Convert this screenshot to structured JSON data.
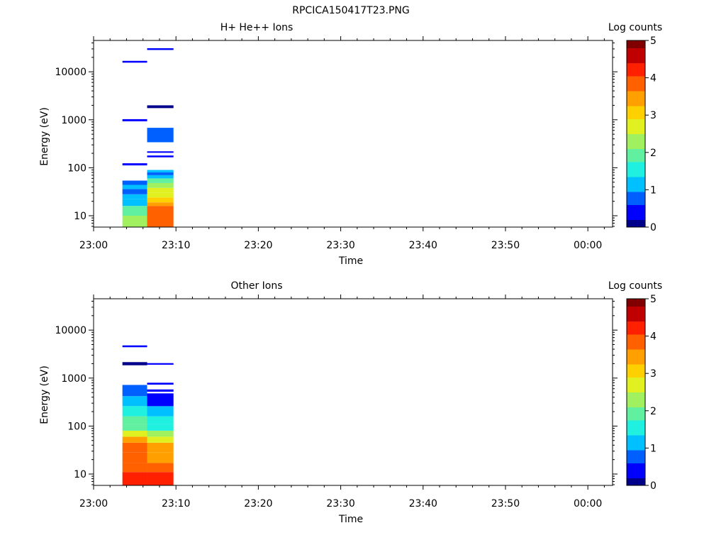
{
  "figure_title": "RPCICA150417T23.PNG",
  "colorbar_scale": [
    "#00008b",
    "#0000ff",
    "#0060ff",
    "#00c0ff",
    "#20f0e0",
    "#60f0a0",
    "#a0f060",
    "#e0f020",
    "#ffd000",
    "#ffa000",
    "#ff6000",
    "#ff2000",
    "#c00000",
    "#800000"
  ],
  "chart_data": [
    {
      "type": "heatmap",
      "title": "H+ He++ Ions",
      "xlabel": "Time",
      "ylabel": "Energy (eV)",
      "y_scale": "log",
      "xlim": [
        "23:00",
        "00:03"
      ],
      "ylim": [
        5.8,
        45000
      ],
      "x_ticks": [
        "23:00",
        "23:10",
        "23:20",
        "23:30",
        "23:40",
        "23:50",
        "00:00"
      ],
      "y_ticks": [
        "10",
        "100",
        "1000",
        "10000"
      ],
      "colorbar": {
        "label": "Log counts",
        "range": [
          0,
          5
        ],
        "ticks": [
          "0",
          "1",
          "2",
          "3",
          "4",
          "5"
        ]
      },
      "columns": [
        {
          "t_start": "23:03.5",
          "t_end": "23:06.5",
          "cells": [
            {
              "e_low": 5.8,
              "e_high": 10,
              "log_counts": 2.2
            },
            {
              "e_low": 10,
              "e_high": 16,
              "log_counts": 1.8
            },
            {
              "e_low": 16,
              "e_high": 22,
              "log_counts": 1.3
            },
            {
              "e_low": 22,
              "e_high": 28,
              "log_counts": 1.0
            },
            {
              "e_low": 28,
              "e_high": 36,
              "log_counts": 0.8
            },
            {
              "e_low": 36,
              "e_high": 44,
              "log_counts": 1.1
            },
            {
              "e_low": 44,
              "e_high": 54,
              "log_counts": 0.9
            },
            {
              "e_low": 112,
              "e_high": 124,
              "log_counts": 0.2
            },
            {
              "e_low": 930,
              "e_high": 1030,
              "log_counts": 0.2
            },
            {
              "e_low": 15500,
              "e_high": 16900,
              "log_counts": 0.2
            }
          ]
        },
        {
          "t_start": "23:06.5",
          "t_end": "23:09.7",
          "cells": [
            {
              "e_low": 5.8,
              "e_high": 16,
              "log_counts": 3.7
            },
            {
              "e_low": 16,
              "e_high": 19,
              "log_counts": 3.3
            },
            {
              "e_low": 19,
              "e_high": 24,
              "log_counts": 2.9
            },
            {
              "e_low": 24,
              "e_high": 30,
              "log_counts": 2.7
            },
            {
              "e_low": 30,
              "e_high": 38,
              "log_counts": 2.5
            },
            {
              "e_low": 38,
              "e_high": 48,
              "log_counts": 2.2
            },
            {
              "e_low": 48,
              "e_high": 60,
              "log_counts": 1.9
            },
            {
              "e_low": 60,
              "e_high": 70,
              "log_counts": 1.3
            },
            {
              "e_low": 70,
              "e_high": 80,
              "log_counts": 0.9
            },
            {
              "e_low": 80,
              "e_high": 90,
              "log_counts": 1.2
            },
            {
              "e_low": 165,
              "e_high": 180,
              "log_counts": 0.2
            },
            {
              "e_low": 205,
              "e_high": 220,
              "log_counts": 0.2
            },
            {
              "e_low": 340,
              "e_high": 680,
              "log_counts": 0.6
            },
            {
              "e_low": 1750,
              "e_high": 2000,
              "log_counts": 0.1
            },
            {
              "e_low": 28500,
              "e_high": 31000,
              "log_counts": 0.2
            }
          ]
        }
      ]
    },
    {
      "type": "heatmap",
      "title": "Other Ions",
      "xlabel": "Time",
      "ylabel": "Energy (eV)",
      "y_scale": "log",
      "xlim": [
        "23:00",
        "00:03"
      ],
      "ylim": [
        5.8,
        45000
      ],
      "x_ticks": [
        "23:00",
        "23:10",
        "23:20",
        "23:30",
        "23:40",
        "23:50",
        "00:00"
      ],
      "y_ticks": [
        "10",
        "100",
        "1000",
        "10000"
      ],
      "colorbar": {
        "label": "Log counts",
        "range": [
          0,
          5
        ],
        "ticks": [
          "0",
          "1",
          "2",
          "3",
          "4",
          "5"
        ]
      },
      "columns": [
        {
          "t_start": "23:03.5",
          "t_end": "23:06.5",
          "cells": [
            {
              "e_low": 5.8,
              "e_high": 11,
              "log_counts": 4.2
            },
            {
              "e_low": 11,
              "e_high": 17,
              "log_counts": 4.0
            },
            {
              "e_low": 17,
              "e_high": 28,
              "log_counts": 3.8
            },
            {
              "e_low": 28,
              "e_high": 45,
              "log_counts": 3.7
            },
            {
              "e_low": 45,
              "e_high": 60,
              "log_counts": 3.3
            },
            {
              "e_low": 60,
              "e_high": 80,
              "log_counts": 2.6
            },
            {
              "e_low": 80,
              "e_high": 110,
              "log_counts": 2.1
            },
            {
              "e_low": 110,
              "e_high": 160,
              "log_counts": 1.8
            },
            {
              "e_low": 160,
              "e_high": 260,
              "log_counts": 1.6
            },
            {
              "e_low": 260,
              "e_high": 420,
              "log_counts": 1.2
            },
            {
              "e_low": 420,
              "e_high": 720,
              "log_counts": 0.7
            },
            {
              "e_low": 1850,
              "e_high": 2150,
              "log_counts": 0.1
            },
            {
              "e_low": 4400,
              "e_high": 4800,
              "log_counts": 0.2
            }
          ]
        },
        {
          "t_start": "23:06.5",
          "t_end": "23:09.7",
          "cells": [
            {
              "e_low": 5.8,
              "e_high": 11,
              "log_counts": 4.1
            },
            {
              "e_low": 11,
              "e_high": 17,
              "log_counts": 3.9
            },
            {
              "e_low": 17,
              "e_high": 28,
              "log_counts": 3.6
            },
            {
              "e_low": 28,
              "e_high": 45,
              "log_counts": 3.3
            },
            {
              "e_low": 45,
              "e_high": 60,
              "log_counts": 2.8
            },
            {
              "e_low": 60,
              "e_high": 80,
              "log_counts": 2.2
            },
            {
              "e_low": 80,
              "e_high": 110,
              "log_counts": 1.7
            },
            {
              "e_low": 110,
              "e_high": 160,
              "log_counts": 1.4
            },
            {
              "e_low": 160,
              "e_high": 260,
              "log_counts": 1.0
            },
            {
              "e_low": 260,
              "e_high": 480,
              "log_counts": 0.5
            },
            {
              "e_low": 520,
              "e_high": 580,
              "log_counts": 0.4
            },
            {
              "e_low": 730,
              "e_high": 800,
              "log_counts": 0.2
            },
            {
              "e_low": 1900,
              "e_high": 2050,
              "log_counts": 0.3
            }
          ]
        }
      ]
    }
  ]
}
